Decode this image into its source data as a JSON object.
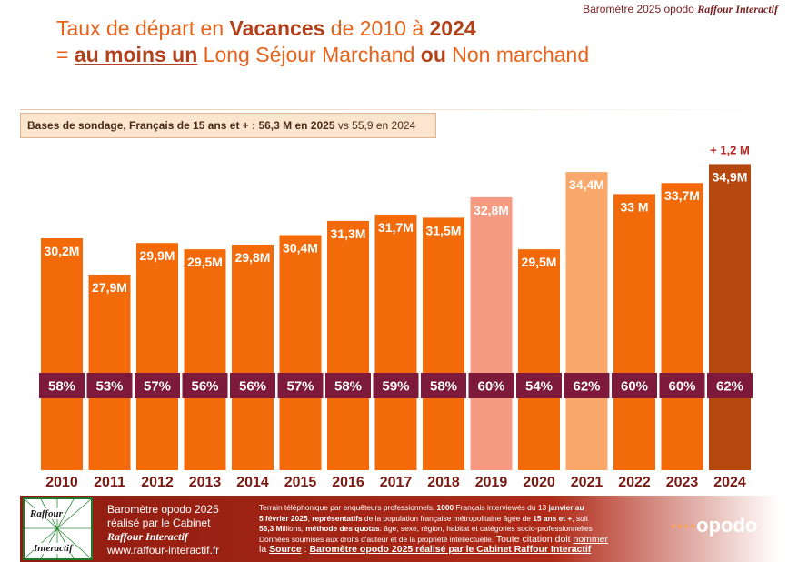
{
  "header": {
    "credit_prefix": "Baromètre 2025 opodo",
    "credit_brand": "Raffour Interactif",
    "title1_a": "Taux de départ en ",
    "title1_b": "Vacances",
    "title1_c": " de 2010 à ",
    "title1_d": "2024",
    "title2_a": "= ",
    "title2_b": "au moins un",
    "title2_c": " Long Séjour Marchand ",
    "title2_d": "ou",
    "title2_e": " Non marchand"
  },
  "base_note": {
    "bold": "Bases de sondage, Français de 15 ans et + : 56,3 M en 2025",
    "rest": " vs 55,9 en 2024"
  },
  "chart_data": {
    "type": "bar",
    "categories": [
      "2010",
      "2011",
      "2012",
      "2013",
      "2014",
      "2015",
      "2016",
      "2017",
      "2018",
      "2019",
      "2020",
      "2021",
      "2022",
      "2023",
      "2024"
    ],
    "values": [
      30.2,
      27.9,
      29.9,
      29.5,
      29.8,
      30.4,
      31.3,
      31.7,
      31.5,
      32.8,
      29.5,
      34.4,
      33.0,
      33.7,
      34.9
    ],
    "value_labels": [
      "30,2M",
      "27,9M",
      "29,9M",
      "29,5M",
      "29,8M",
      "30,4M",
      "31,3M",
      "31,7M",
      "31,5M",
      "32,8M",
      "29,5M",
      "34,4M",
      "33 M",
      "33,7M",
      "34,9M"
    ],
    "percent_labels": [
      "58%",
      "53%",
      "57%",
      "56%",
      "56%",
      "57%",
      "58%",
      "59%",
      "58%",
      "60%",
      "54%",
      "62%",
      "60%",
      "60%",
      "62%"
    ],
    "bar_colors": [
      "#f26a09",
      "#f26a09",
      "#f26a09",
      "#f26a09",
      "#f26a09",
      "#f26a09",
      "#f26a09",
      "#f26a09",
      "#f26a09",
      "#f79a82",
      "#f26a09",
      "#f9a86b",
      "#f26a09",
      "#f26a09",
      "#b5480e"
    ],
    "percent_band_color": "#7d1a3c",
    "annotation": "+ 1,2 M",
    "title": "",
    "xlabel": "",
    "ylabel": "",
    "grid": false
  },
  "footer": {
    "logo_top": "Raffour",
    "logo_bottom": "Interactif",
    "left_line1": "Baromètre opodo 2025",
    "left_line2": "réalisé par le Cabinet",
    "left_brand": "Raffour Interactif",
    "left_url": "www.raffour-interactif.fr",
    "mid_1": "Terrain téléphonique par enquêteurs professionnels. ",
    "mid_1b": "1000",
    "mid_1c": " Français interviewés du 13 ",
    "mid_1d": "janvier au",
    "mid_2a": "5  février 2025",
    "mid_2b": ", ",
    "mid_2c": "représentatifs",
    "mid_2d": " de la population française métropolitaine âgée de ",
    "mid_2e": "15 ans et +",
    "mid_2f": ", soit",
    "mid_3a": "56,3 M",
    "mid_3b": "illions, ",
    "mid_3c": "méthode des quotas",
    "mid_3d": ": âge, sexe, région, habitat et catégories socio-professionnelles",
    "mid_4": "Données soumises aux droits d'auteur et de la propriété intellectuelle.",
    "mid_4b": " Toute citation doit ",
    "mid_4c": "nommer",
    "mid_5a": "la ",
    "mid_5b": "Source",
    "mid_5c": " : ",
    "mid_5d": "Baromètre opodo 2025 réalisé par le Cabinet Raffour Interactif",
    "opodo_dots": "●●●●",
    "opodo": "opodo"
  }
}
